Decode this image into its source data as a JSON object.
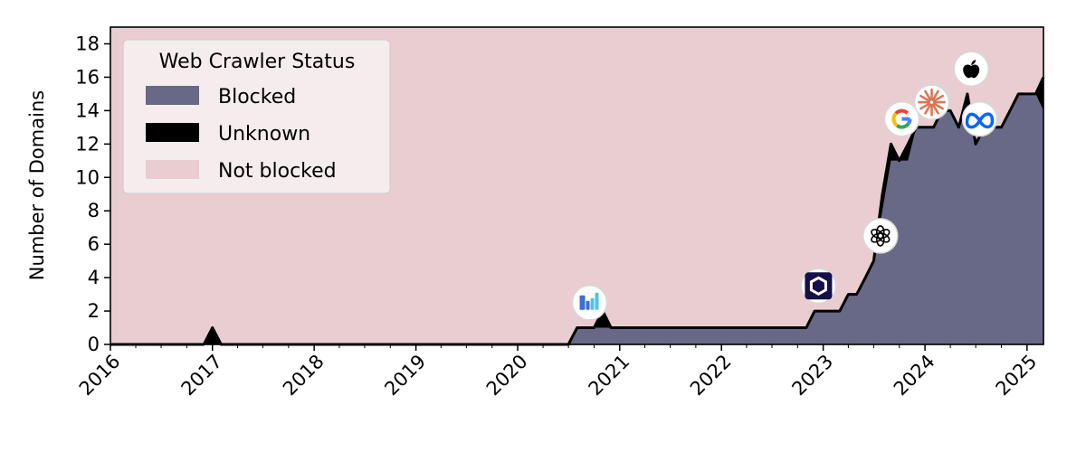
{
  "chart_data": {
    "type": "area",
    "ylabel": "Number of Domains",
    "y_ticks": [
      0,
      2,
      4,
      6,
      8,
      10,
      12,
      14,
      16,
      18
    ],
    "x_ticks": [
      "2016",
      "2017",
      "2018",
      "2019",
      "2020",
      "2021",
      "2022",
      "2023",
      "2024",
      "2025"
    ],
    "xlim": [
      "2016-01-01",
      "2025-03-01"
    ],
    "ylim": [
      0,
      19
    ],
    "grid": false,
    "stacked": true,
    "legend": {
      "title": "Web Crawler Status",
      "placement": "top-left",
      "entries": [
        "Blocked",
        "Unknown",
        "Not blocked"
      ]
    },
    "colors": {
      "Blocked": "#686887",
      "Unknown": "#000000",
      "Not blocked": "#e9cdd1"
    },
    "series": [
      {
        "name": "Blocked",
        "points": [
          [
            "2016-01-01",
            0
          ],
          [
            "2020-07-01",
            0
          ],
          [
            "2020-08-01",
            1
          ],
          [
            "2020-10-01",
            1
          ],
          [
            "2020-11-01",
            1
          ],
          [
            "2020-12-01",
            1
          ],
          [
            "2021-01-01",
            1
          ],
          [
            "2022-10-01",
            1
          ],
          [
            "2022-11-01",
            1
          ],
          [
            "2022-12-01",
            2
          ],
          [
            "2023-02-01",
            2
          ],
          [
            "2023-03-01",
            2
          ],
          [
            "2023-04-01",
            3
          ],
          [
            "2023-05-01",
            3
          ],
          [
            "2023-06-01",
            4
          ],
          [
            "2023-07-01",
            5
          ],
          [
            "2023-08-01",
            8
          ],
          [
            "2023-09-01",
            11
          ],
          [
            "2023-10-01",
            11
          ],
          [
            "2023-11-01",
            11
          ],
          [
            "2023-12-01",
            13
          ],
          [
            "2024-01-01",
            13
          ],
          [
            "2024-02-01",
            13
          ],
          [
            "2024-03-01",
            14
          ],
          [
            "2024-04-01",
            14
          ],
          [
            "2024-05-01",
            13
          ],
          [
            "2024-06-01",
            14
          ],
          [
            "2024-07-01",
            12
          ],
          [
            "2024-08-01",
            13
          ],
          [
            "2024-09-01",
            13
          ],
          [
            "2024-10-01",
            13
          ],
          [
            "2024-11-01",
            14
          ],
          [
            "2024-12-01",
            15
          ],
          [
            "2025-01-01",
            15
          ],
          [
            "2025-02-01",
            15
          ],
          [
            "2025-03-01",
            14
          ]
        ]
      },
      {
        "name": "Unknown",
        "points": [
          [
            "2016-01-01",
            0
          ],
          [
            "2016-12-01",
            0
          ],
          [
            "2017-01-01",
            1
          ],
          [
            "2017-02-01",
            0
          ],
          [
            "2020-07-01",
            0
          ],
          [
            "2020-08-01",
            0
          ],
          [
            "2020-10-01",
            0
          ],
          [
            "2020-11-01",
            1
          ],
          [
            "2020-12-01",
            0
          ],
          [
            "2022-10-01",
            0
          ],
          [
            "2022-11-01",
            0
          ],
          [
            "2022-12-01",
            0
          ],
          [
            "2023-02-01",
            0
          ],
          [
            "2023-03-01",
            0
          ],
          [
            "2023-04-01",
            0
          ],
          [
            "2023-05-01",
            0
          ],
          [
            "2023-06-01",
            0
          ],
          [
            "2023-07-01",
            0
          ],
          [
            "2023-08-01",
            1
          ],
          [
            "2023-09-01",
            1
          ],
          [
            "2023-10-01",
            0
          ],
          [
            "2023-11-01",
            1
          ],
          [
            "2023-12-01",
            0
          ],
          [
            "2024-01-01",
            0
          ],
          [
            "2024-02-01",
            0
          ],
          [
            "2024-03-01",
            0
          ],
          [
            "2024-04-01",
            0
          ],
          [
            "2024-05-01",
            0
          ],
          [
            "2024-06-01",
            1
          ],
          [
            "2024-07-01",
            0
          ],
          [
            "2024-08-01",
            0
          ],
          [
            "2024-09-01",
            0
          ],
          [
            "2024-10-01",
            0
          ],
          [
            "2024-11-01",
            0
          ],
          [
            "2024-12-01",
            0
          ],
          [
            "2025-01-01",
            0
          ],
          [
            "2025-02-01",
            0
          ],
          [
            "2025-03-01",
            2
          ]
        ]
      }
    ],
    "total_line": {
      "points": [
        [
          "2016-01-01",
          0
        ],
        [
          "2016-12-01",
          0
        ],
        [
          "2017-01-01",
          1
        ],
        [
          "2017-02-01",
          0
        ],
        [
          "2020-07-01",
          0
        ],
        [
          "2020-08-01",
          1
        ],
        [
          "2020-10-01",
          1
        ],
        [
          "2020-11-01",
          2
        ],
        [
          "2020-12-01",
          1
        ],
        [
          "2021-01-01",
          1
        ],
        [
          "2022-10-01",
          1
        ],
        [
          "2022-11-01",
          1
        ],
        [
          "2022-12-01",
          2
        ],
        [
          "2023-02-01",
          2
        ],
        [
          "2023-03-01",
          2
        ],
        [
          "2023-04-01",
          3
        ],
        [
          "2023-05-01",
          3
        ],
        [
          "2023-06-01",
          4
        ],
        [
          "2023-07-01",
          5
        ],
        [
          "2023-08-01",
          9
        ],
        [
          "2023-09-01",
          12
        ],
        [
          "2023-10-01",
          11
        ],
        [
          "2023-11-01",
          12
        ],
        [
          "2023-12-01",
          13
        ],
        [
          "2024-01-01",
          13
        ],
        [
          "2024-02-01",
          13
        ],
        [
          "2024-03-01",
          14
        ],
        [
          "2024-04-01",
          14
        ],
        [
          "2024-05-01",
          13
        ],
        [
          "2024-06-01",
          15
        ],
        [
          "2024-07-01",
          12
        ],
        [
          "2024-08-01",
          13
        ],
        [
          "2024-09-01",
          13
        ],
        [
          "2024-10-01",
          13
        ],
        [
          "2024-11-01",
          14
        ],
        [
          "2024-12-01",
          15
        ],
        [
          "2025-01-01",
          15
        ],
        [
          "2025-02-01",
          15
        ],
        [
          "2025-03-01",
          16
        ]
      ]
    },
    "annotations": [
      {
        "icon": "brand-bars-icon",
        "x": "2020-09-15",
        "y": 2.5,
        "colors": [
          "#3b6fd8",
          "#4fc4e8"
        ]
      },
      {
        "icon": "hexagon-logo-icon",
        "x": "2022-12-15",
        "y": 3.5,
        "colors": [
          "#14104a",
          "#ffffff"
        ]
      },
      {
        "icon": "openai-icon",
        "x": "2023-07-25",
        "y": 6.5,
        "colors": [
          "#000000"
        ]
      },
      {
        "icon": "google-icon",
        "x": "2023-10-10",
        "y": 13.5,
        "colors": [
          "#4285f4",
          "#ea4335",
          "#fbbc05",
          "#34a853"
        ]
      },
      {
        "icon": "anthropic-icon",
        "x": "2024-01-25",
        "y": 14.5,
        "colors": [
          "#d97757"
        ]
      },
      {
        "icon": "apple-icon",
        "x": "2024-06-15",
        "y": 16.5,
        "colors": [
          "#000000"
        ]
      },
      {
        "icon": "meta-icon",
        "x": "2024-07-15",
        "y": 13.5,
        "colors": [
          "#0866ff",
          "#0ac8ff"
        ]
      }
    ]
  }
}
